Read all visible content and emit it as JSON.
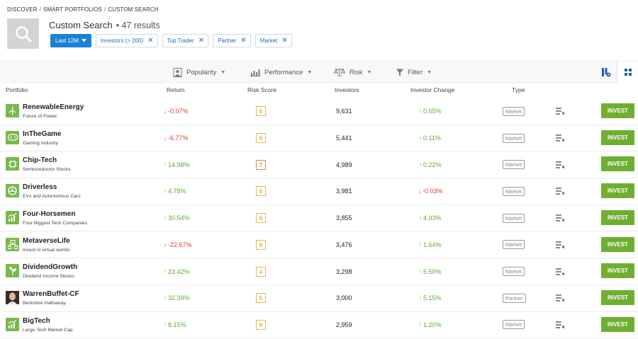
{
  "breadcrumb": [
    "DISCOVER",
    "SMART PORTFOLIOS",
    "CUSTOM SEARCH"
  ],
  "header": {
    "title": "Custom Search",
    "count": "• 47 results"
  },
  "filters": {
    "period": "Last 12M",
    "chips": [
      "Investors (> 200)",
      "Top Trader",
      "Partner",
      "Market"
    ]
  },
  "sort_bar": [
    "Popularity",
    "Performance",
    "Risk",
    "Filter"
  ],
  "table": {
    "headers": [
      "Portfolio",
      "Return",
      "Risk Score",
      "Investors",
      "Investor Change",
      "Type"
    ],
    "invest_label": "INVEST",
    "rows": [
      {
        "name": "RenewableEnergy",
        "desc": "Future of Power",
        "ret": "-0.07%",
        "ret_dir": "neg",
        "risk": "6",
        "investors": "9,631",
        "change": "0.65%",
        "chg_dir": "pos",
        "type": "Market",
        "icon": "wind-turbine-icon"
      },
      {
        "name": "InTheGame",
        "desc": "Gaming Industry",
        "ret": "-6.77%",
        "ret_dir": "neg",
        "risk": "6",
        "investors": "5,441",
        "change": "0.11%",
        "chg_dir": "pos",
        "type": "Market",
        "icon": "gamepad-icon"
      },
      {
        "name": "Chip-Tech",
        "desc": "Semiconductor Stocks",
        "ret": "14.98%",
        "ret_dir": "pos",
        "risk": "7",
        "investors": "4,989",
        "change": "0.22%",
        "chg_dir": "pos",
        "type": "Market",
        "icon": "chip-icon"
      },
      {
        "name": "Driverless",
        "desc": "EVs and Autonomous Cars",
        "ret": "4.78%",
        "ret_dir": "pos",
        "risk": "6",
        "investors": "3,981",
        "change": "-0.03%",
        "chg_dir": "neg",
        "type": "Market",
        "icon": "wheel-icon"
      },
      {
        "name": "Four-Horsemen",
        "desc": "Four Biggest Tech Companies",
        "ret": "30.54%",
        "ret_dir": "pos",
        "risk": "6",
        "investors": "3,855",
        "change": "4.93%",
        "chg_dir": "pos",
        "type": "Market",
        "icon": "growth-chart-icon"
      },
      {
        "name": "MetaverseLife",
        "desc": "Invest in virtual worlds",
        "ret": "-22.67%",
        "ret_dir": "neg",
        "risk": "6",
        "investors": "3,476",
        "change": "1.64%",
        "chg_dir": "pos",
        "type": "Market",
        "icon": "network-icon"
      },
      {
        "name": "DividendGrowth",
        "desc": "Dividend Income Stocks",
        "ret": "23.42%",
        "ret_dir": "pos",
        "risk": "4",
        "investors": "3,298",
        "change": "5.50%",
        "chg_dir": "pos",
        "type": "Market",
        "icon": "plant-icon"
      },
      {
        "name": "WarrenBuffet-CF",
        "desc": "Berkshire Hathaway",
        "ret": "32.39%",
        "ret_dir": "pos",
        "risk": "5",
        "investors": "3,000",
        "change": "5.15%",
        "chg_dir": "pos",
        "type": "Partner",
        "icon": "portrait-photo-icon"
      },
      {
        "name": "BigTech",
        "desc": "Large Tech Market Cap",
        "ret": "8.15%",
        "ret_dir": "pos",
        "risk": "6",
        "investors": "2,959",
        "change": "1.20%",
        "chg_dir": "pos",
        "type": "Market",
        "icon": "growth-chart-icon"
      }
    ]
  },
  "colors": {
    "accent_blue": "#1a82d6",
    "invest_green": "#6fae33",
    "positive": "#5aac36",
    "negative": "#d64133",
    "risk_border": "#e4b94f",
    "logo_green": "#79b84b"
  }
}
